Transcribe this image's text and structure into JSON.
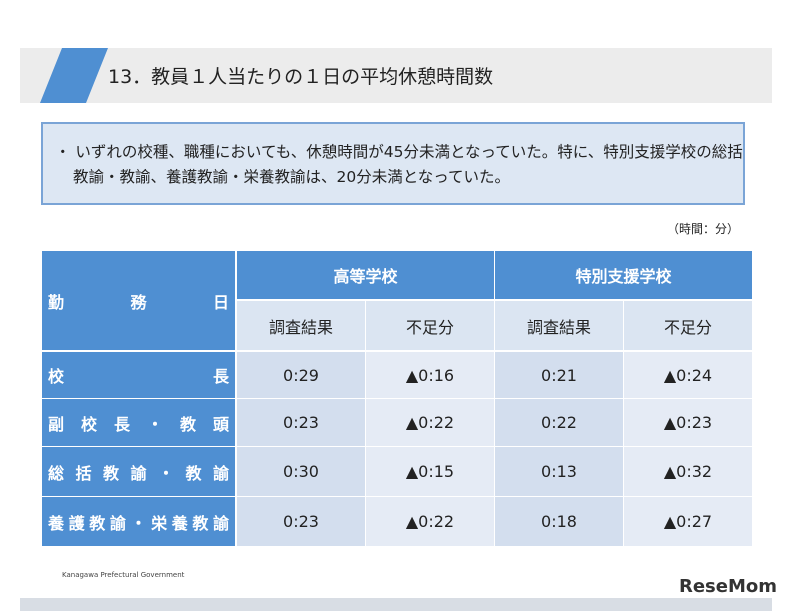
{
  "header": {
    "title": "13．教員１人当たりの１日の平均休憩時間数"
  },
  "note": "・ いずれの校種、職種においても、休憩時間が45分未満となっていた。特に、特別支援学校の総括教諭・教諭、養護教諭・栄養教諭は、20分未満となっていた。",
  "unit": "（時間：分）",
  "table": {
    "corner": "勤務日",
    "groups": [
      "高等学校",
      "特別支援学校"
    ],
    "subheaders": [
      "調査結果",
      "不足分",
      "調査結果",
      "不足分"
    ],
    "rows": [
      [
        "校長",
        "0:29",
        "▲0:16",
        "0:21",
        "▲0:24"
      ],
      [
        "副校長・教頭",
        "0:23",
        "▲0:22",
        "0:22",
        "▲0:23"
      ],
      [
        "総括教諭・教諭",
        "0:30",
        "▲0:15",
        "0:13",
        "▲0:32"
      ],
      [
        "養護教諭・栄養教諭",
        "0:23",
        "▲0:22",
        "0:18",
        "▲0:27"
      ]
    ]
  },
  "footer": "Kanagawa Prefectural Government",
  "logo": "ReseMom"
}
